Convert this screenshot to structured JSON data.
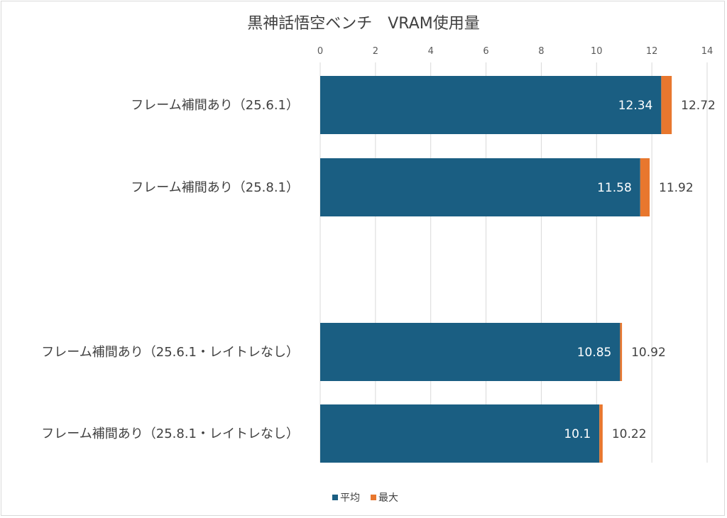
{
  "chart_data": {
    "type": "bar",
    "orientation": "horizontal",
    "title": "黒神話悟空ベンチ　VRAM使用量",
    "categories": [
      "フレーム補間あり（25.6.1）",
      "フレーム補間あり（25.8.1）",
      "",
      "フレーム補間あり（25.6.1・レイトレなし）",
      "フレーム補間あり（25.8.1・レイトレなし）"
    ],
    "series": [
      {
        "name": "平均",
        "color": "#1a5e82",
        "values": [
          12.34,
          11.58,
          null,
          10.85,
          10.1
        ],
        "labels": [
          "12.34",
          "11.58",
          "",
          "10.85",
          "10.1"
        ]
      },
      {
        "name": "最大",
        "color": "#e8772e",
        "values": [
          12.72,
          11.92,
          null,
          10.92,
          10.22
        ],
        "labels": [
          "12.72",
          "11.92",
          "",
          "10.92",
          "10.22"
        ]
      }
    ],
    "xlim": [
      0,
      14
    ],
    "xticks": [
      "0",
      "2",
      "4",
      "6",
      "8",
      "10",
      "12",
      "14"
    ],
    "xaxis_position": "top",
    "grid": true,
    "legend_position": "bottom"
  }
}
